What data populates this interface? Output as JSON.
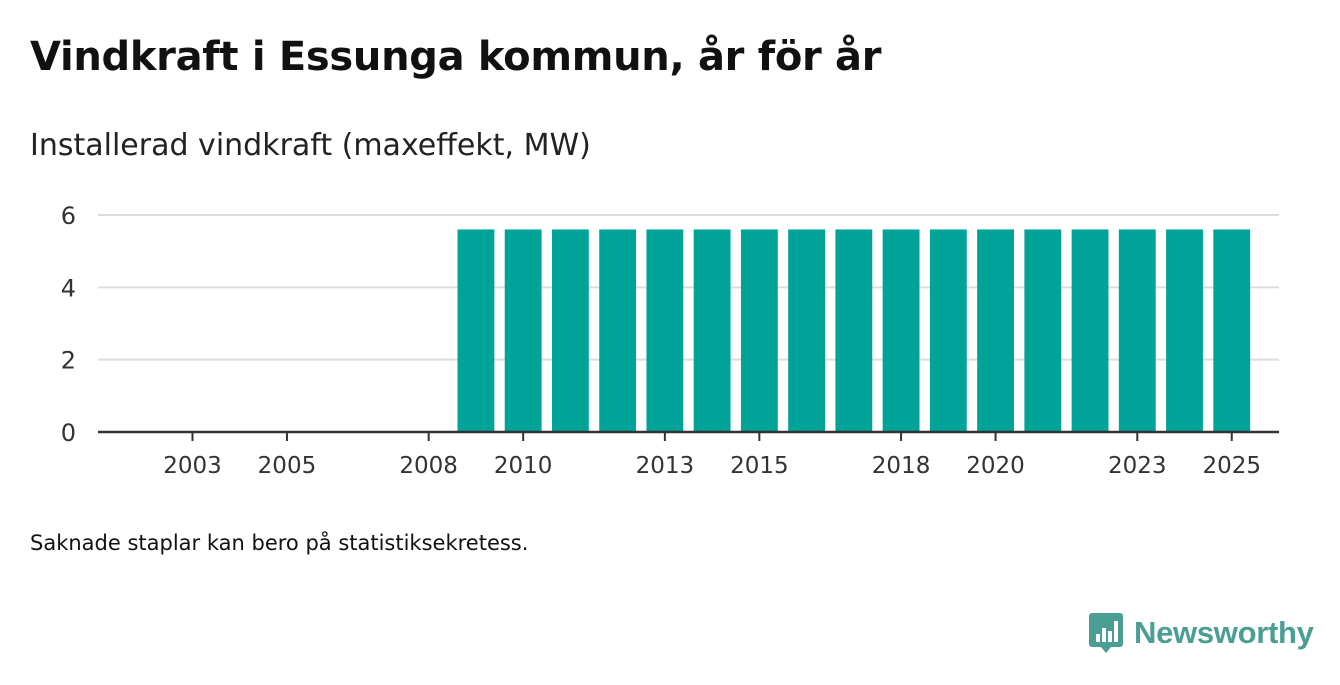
{
  "header": {
    "title": "Vindkraft i Essunga kommun, år för år",
    "subtitle": "Installerad vindkraft (maxeffekt, MW)"
  },
  "chart_data": {
    "type": "bar",
    "title": "Vindkraft i Essunga kommun, år för år",
    "subtitle": "Installerad vindkraft (maxeffekt, MW)",
    "xlabel": "",
    "ylabel": "Installerad vindkraft (maxeffekt, MW)",
    "categories": [
      2002,
      2003,
      2004,
      2005,
      2006,
      2007,
      2008,
      2009,
      2010,
      2011,
      2012,
      2013,
      2014,
      2015,
      2016,
      2017,
      2018,
      2019,
      2020,
      2021,
      2022,
      2023,
      2024,
      2025
    ],
    "values": [
      0,
      0,
      0,
      0,
      0,
      0,
      0,
      5.6,
      5.6,
      5.6,
      5.6,
      5.6,
      5.6,
      5.6,
      5.6,
      5.6,
      5.6,
      5.6,
      5.6,
      5.6,
      5.6,
      5.6,
      5.6,
      5.6
    ],
    "x_tick_labels": [
      "2003",
      "2005",
      "2008",
      "2010",
      "2013",
      "2015",
      "2018",
      "2020",
      "2023",
      "2025"
    ],
    "y_ticks": [
      0,
      2,
      4,
      6
    ],
    "ylim": [
      0,
      6
    ],
    "grid": true,
    "bar_color": "#00a398",
    "grid_color": "#dddddd",
    "axis_color": "#333333"
  },
  "footer": {
    "note": "Saknade staplar kan bero på statistiksekretess.",
    "brand": "Newsworthy",
    "brand_color": "#4a9e94",
    "brand_icon": "newsworthy-chart-bubble-icon"
  }
}
